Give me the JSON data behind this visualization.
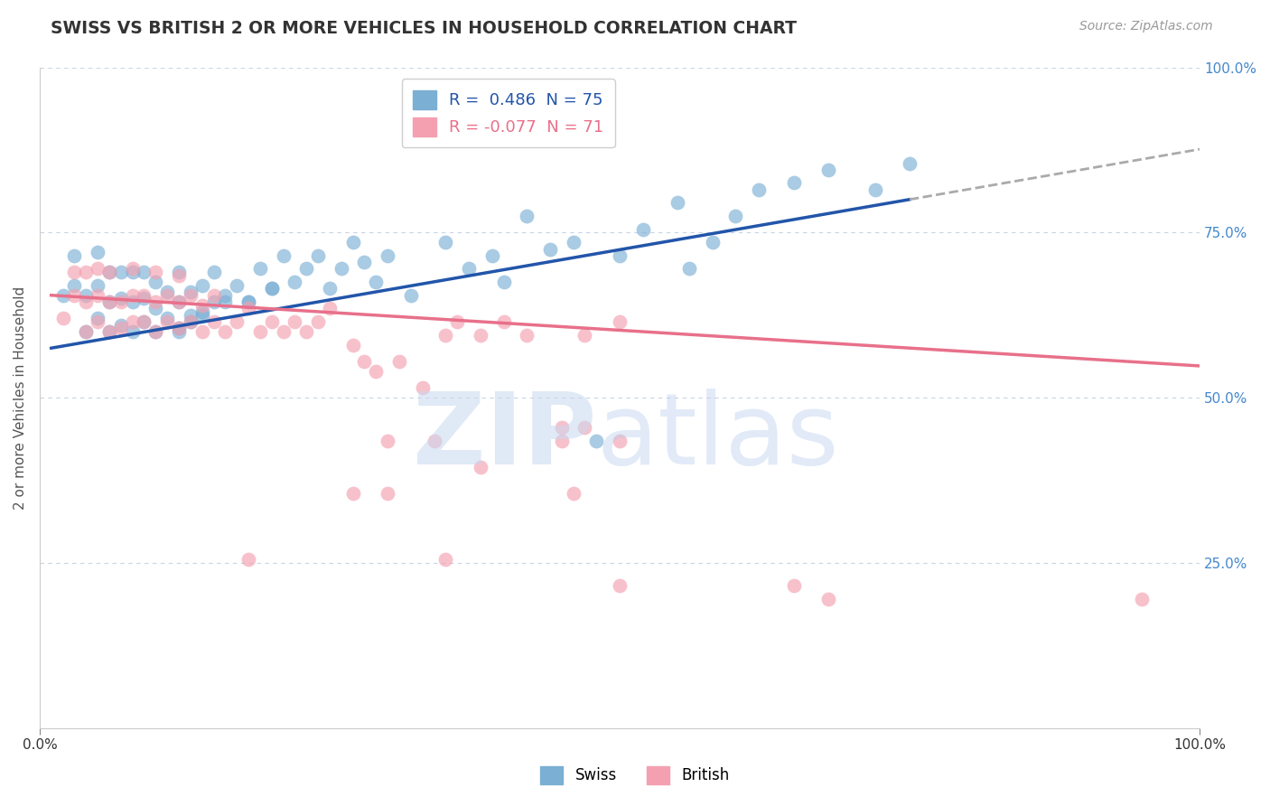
{
  "title": "SWISS VS BRITISH 2 OR MORE VEHICLES IN HOUSEHOLD CORRELATION CHART",
  "source_text": "Source: ZipAtlas.com",
  "ylabel": "2 or more Vehicles in Household",
  "xlim": [
    0.0,
    1.0
  ],
  "ylim": [
    0.0,
    1.0
  ],
  "swiss_color": "#7bafd4",
  "british_color": "#f4a0b0",
  "swiss_line_color": "#2255aa",
  "british_line_color": "#e8708a",
  "swiss_R": 0.486,
  "swiss_N": 75,
  "british_R": -0.077,
  "british_N": 71,
  "background_color": "#ffffff",
  "grid_color": "#c8d4e8",
  "swiss_line_x0": 0.01,
  "swiss_line_y0": 0.575,
  "swiss_line_x1": 0.75,
  "swiss_line_y1": 0.8,
  "british_line_x0": 0.01,
  "british_line_y0": 0.655,
  "british_line_x1": 1.0,
  "british_line_y1": 0.548,
  "swiss_x": [
    0.02,
    0.03,
    0.03,
    0.04,
    0.04,
    0.05,
    0.05,
    0.05,
    0.06,
    0.06,
    0.06,
    0.07,
    0.07,
    0.07,
    0.08,
    0.08,
    0.08,
    0.09,
    0.09,
    0.09,
    0.1,
    0.1,
    0.1,
    0.11,
    0.11,
    0.12,
    0.12,
    0.12,
    0.13,
    0.13,
    0.14,
    0.14,
    0.15,
    0.15,
    0.16,
    0.17,
    0.18,
    0.19,
    0.2,
    0.21,
    0.22,
    0.23,
    0.24,
    0.26,
    0.28,
    0.29,
    0.3,
    0.32,
    0.35,
    0.37,
    0.39,
    0.42,
    0.44,
    0.46,
    0.5,
    0.52,
    0.55,
    0.58,
    0.6,
    0.62,
    0.65,
    0.68,
    0.72,
    0.75,
    0.4,
    0.27,
    0.25,
    0.2,
    0.18,
    0.16,
    0.14,
    0.13,
    0.12,
    0.56,
    0.48
  ],
  "swiss_y": [
    0.655,
    0.67,
    0.715,
    0.6,
    0.655,
    0.62,
    0.67,
    0.72,
    0.6,
    0.645,
    0.69,
    0.61,
    0.65,
    0.69,
    0.6,
    0.645,
    0.69,
    0.615,
    0.65,
    0.69,
    0.6,
    0.635,
    0.675,
    0.62,
    0.66,
    0.6,
    0.645,
    0.69,
    0.625,
    0.66,
    0.63,
    0.67,
    0.645,
    0.69,
    0.655,
    0.67,
    0.645,
    0.695,
    0.665,
    0.715,
    0.675,
    0.695,
    0.715,
    0.695,
    0.705,
    0.675,
    0.715,
    0.655,
    0.735,
    0.695,
    0.715,
    0.775,
    0.725,
    0.735,
    0.715,
    0.755,
    0.795,
    0.735,
    0.775,
    0.815,
    0.825,
    0.845,
    0.815,
    0.855,
    0.675,
    0.735,
    0.665,
    0.665,
    0.645,
    0.645,
    0.625,
    0.615,
    0.605,
    0.695,
    0.435
  ],
  "british_x": [
    0.02,
    0.03,
    0.03,
    0.04,
    0.04,
    0.04,
    0.05,
    0.05,
    0.05,
    0.06,
    0.06,
    0.06,
    0.07,
    0.07,
    0.08,
    0.08,
    0.08,
    0.09,
    0.09,
    0.1,
    0.1,
    0.1,
    0.11,
    0.11,
    0.12,
    0.12,
    0.12,
    0.13,
    0.13,
    0.14,
    0.14,
    0.15,
    0.15,
    0.16,
    0.17,
    0.18,
    0.19,
    0.2,
    0.21,
    0.22,
    0.23,
    0.24,
    0.25,
    0.27,
    0.28,
    0.29,
    0.31,
    0.33,
    0.35,
    0.36,
    0.38,
    0.4,
    0.42,
    0.45,
    0.5,
    0.47,
    0.47,
    0.18,
    0.3,
    0.27,
    0.3,
    0.34,
    0.45,
    0.5,
    0.46,
    0.38,
    0.65,
    0.68,
    0.5,
    0.95,
    0.35
  ],
  "british_y": [
    0.62,
    0.655,
    0.69,
    0.6,
    0.645,
    0.69,
    0.615,
    0.655,
    0.695,
    0.6,
    0.645,
    0.69,
    0.605,
    0.645,
    0.615,
    0.655,
    0.695,
    0.615,
    0.655,
    0.6,
    0.645,
    0.69,
    0.615,
    0.655,
    0.605,
    0.645,
    0.685,
    0.615,
    0.655,
    0.6,
    0.64,
    0.615,
    0.655,
    0.6,
    0.615,
    0.635,
    0.6,
    0.615,
    0.6,
    0.615,
    0.6,
    0.615,
    0.635,
    0.58,
    0.555,
    0.54,
    0.555,
    0.515,
    0.595,
    0.615,
    0.595,
    0.615,
    0.595,
    0.455,
    0.615,
    0.455,
    0.595,
    0.255,
    0.355,
    0.355,
    0.435,
    0.435,
    0.435,
    0.435,
    0.355,
    0.395,
    0.215,
    0.195,
    0.215,
    0.195,
    0.255
  ]
}
